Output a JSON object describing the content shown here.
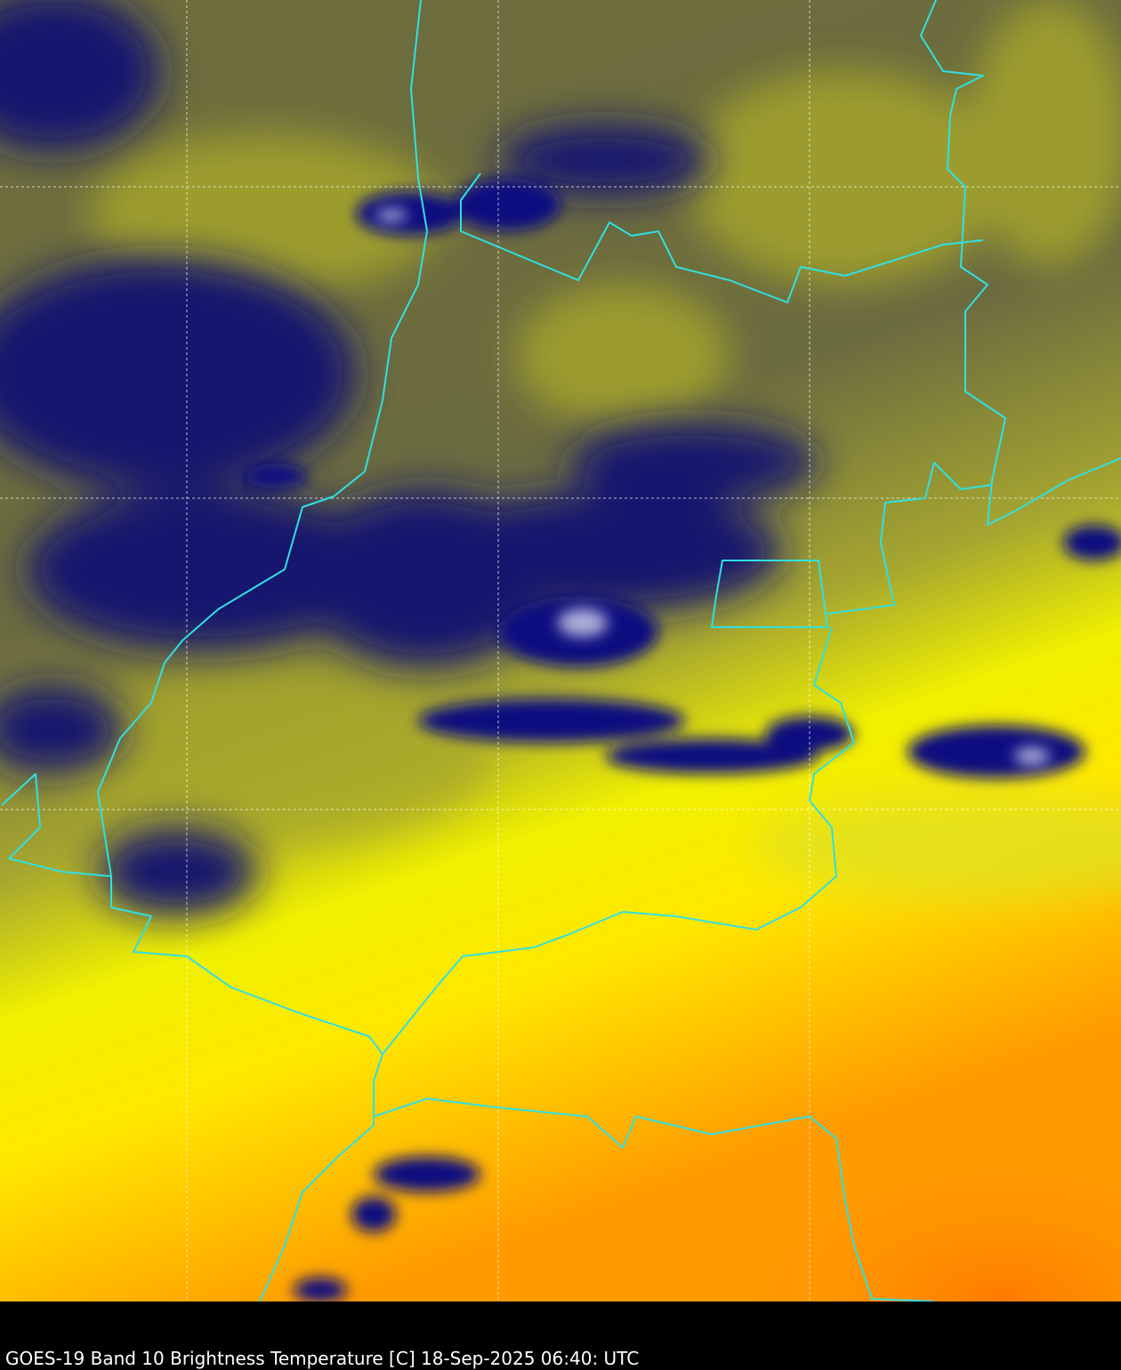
{
  "caption": "GOES-19 Band 10  Brightness Temperature [C] 18-Sep-2025 06:40: UTC"
}
